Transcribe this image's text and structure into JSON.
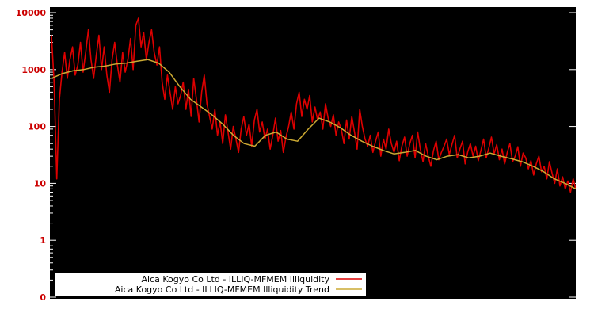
{
  "chart_data": {
    "type": "line",
    "title": "",
    "xlabel": "",
    "ylabel": "",
    "y_scale": "log",
    "ylim": [
      0.1,
      10000
    ],
    "grid": false,
    "legend_position": "bottom-center",
    "colors": {
      "plot_background": "#000000",
      "canvas_background": "#ffffff",
      "tick_label": "#cc0000",
      "tick_mark": "#ffffff",
      "legend_background": "#ffffff"
    },
    "y_tick_labels": [
      "10000",
      "1000",
      "100",
      "10",
      "1",
      "0"
    ],
    "y_tick_values": [
      10000,
      1000,
      100,
      10,
      1,
      0.1
    ],
    "series": [
      {
        "name": "Aica Kogyo Co Ltd - ILLIQ-MFMEM Illiquidity",
        "color": "#dd0000",
        "values": [
          4000,
          600,
          12,
          300,
          900,
          2000,
          700,
          1500,
          2500,
          800,
          1200,
          3000,
          900,
          2000,
          5000,
          1500,
          700,
          1800,
          4000,
          1000,
          2500,
          800,
          400,
          1500,
          3000,
          1200,
          600,
          2000,
          900,
          1500,
          3500,
          1000,
          6000,
          8000,
          2500,
          4500,
          1500,
          3000,
          5000,
          2000,
          1200,
          2500,
          600,
          300,
          800,
          400,
          200,
          500,
          250,
          350,
          600,
          200,
          450,
          150,
          700,
          300,
          120,
          400,
          800,
          250,
          150,
          90,
          200,
          70,
          120,
          50,
          160,
          80,
          40,
          100,
          60,
          35,
          90,
          150,
          70,
          110,
          45,
          130,
          200,
          80,
          120,
          60,
          90,
          40,
          70,
          140,
          55,
          85,
          35,
          65,
          100,
          180,
          90,
          250,
          400,
          150,
          300,
          200,
          350,
          120,
          220,
          130,
          180,
          90,
          250,
          140,
          100,
          160,
          70,
          120,
          90,
          50,
          130,
          60,
          150,
          80,
          40,
          200,
          100,
          60,
          45,
          70,
          35,
          55,
          80,
          30,
          60,
          40,
          90,
          50,
          35,
          55,
          25,
          45,
          65,
          30,
          50,
          70,
          28,
          80,
          40,
          24,
          50,
          30,
          20,
          38,
          55,
          26,
          35,
          45,
          60,
          32,
          48,
          70,
          28,
          40,
          55,
          22,
          36,
          50,
          30,
          45,
          25,
          38,
          60,
          28,
          42,
          65,
          33,
          48,
          26,
          40,
          22,
          35,
          50,
          24,
          30,
          44,
          20,
          34,
          28,
          18,
          25,
          14,
          22,
          30,
          16,
          20,
          12,
          24,
          15,
          10,
          18,
          9,
          13,
          8,
          11,
          7,
          12,
          8
        ]
      },
      {
        "name": "Aica Kogyo Co Ltd - ILLIQ-MFMEM Illiquidity Trend",
        "color": "#ccaa33",
        "values": [
          700,
          850,
          950,
          1000,
          1100,
          1150,
          1250,
          1300,
          1400,
          1500,
          1300,
          900,
          500,
          300,
          220,
          160,
          110,
          70,
          50,
          45,
          70,
          80,
          60,
          55,
          90,
          140,
          120,
          95,
          70,
          55,
          45,
          38,
          33,
          35,
          38,
          30,
          26,
          30,
          32,
          28,
          30,
          34,
          30,
          27,
          24,
          20,
          16,
          12,
          10,
          8
        ]
      }
    ]
  }
}
